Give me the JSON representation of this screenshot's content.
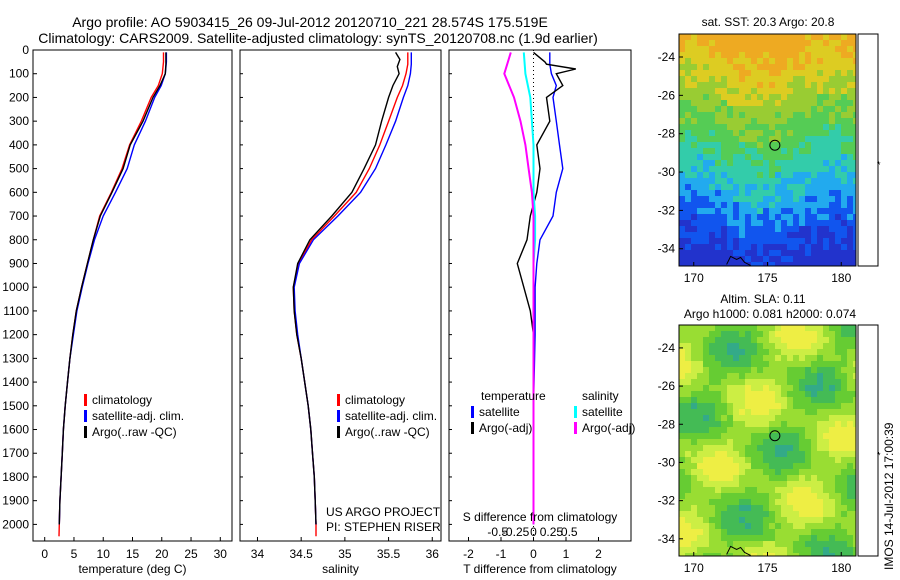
{
  "header": {
    "line1": "Argo profile: AO 5903415_26 09-Jul-2012 20120710_221 28.574S 175.519E",
    "line2": "Climatology: CARS2009. Satellite-adjusted climatology: synTS_20120708.nc (1.9d earlier)"
  },
  "chart_data": [
    {
      "type": "line",
      "id": "temperature",
      "xlabel": "temperature (deg C)",
      "ylabel": "",
      "xlim": [
        -2,
        32
      ],
      "ylim": [
        2070,
        0
      ],
      "xticks": [
        0,
        5,
        10,
        15,
        20,
        25,
        30
      ],
      "yticks": [
        0,
        100,
        200,
        300,
        400,
        500,
        600,
        700,
        800,
        900,
        1000,
        1100,
        1200,
        1300,
        1400,
        1500,
        1600,
        1700,
        1800,
        1900,
        2000
      ],
      "legend": [
        "climatology",
        "satellite-adj. clim.",
        "Argo(..raw -QC)"
      ],
      "legend_position": "bottom-right",
      "series": [
        {
          "name": "climatology",
          "color": "#ff0000",
          "points": [
            [
              20.3,
              10
            ],
            [
              20.3,
              50
            ],
            [
              20.1,
              100
            ],
            [
              19.4,
              150
            ],
            [
              18.2,
              200
            ],
            [
              16.5,
              300
            ],
            [
              14.5,
              400
            ],
            [
              13.2,
              500
            ],
            [
              11.4,
              600
            ],
            [
              9.4,
              700
            ],
            [
              8.3,
              800
            ],
            [
              7.3,
              900
            ],
            [
              6.3,
              1000
            ],
            [
              5.4,
              1100
            ],
            [
              4.8,
              1200
            ],
            [
              4.3,
              1300
            ],
            [
              3.9,
              1400
            ],
            [
              3.5,
              1500
            ],
            [
              3.2,
              1600
            ],
            [
              3.0,
              1700
            ],
            [
              2.8,
              1800
            ],
            [
              2.6,
              1900
            ],
            [
              2.5,
              2000
            ],
            [
              2.45,
              2050
            ]
          ]
        },
        {
          "name": "satellite-adj. clim.",
          "color": "#0000ff",
          "points": [
            [
              20.8,
              10
            ],
            [
              20.8,
              50
            ],
            [
              20.6,
              100
            ],
            [
              19.9,
              150
            ],
            [
              18.8,
              200
            ],
            [
              17.2,
              300
            ],
            [
              15.3,
              400
            ],
            [
              14.1,
              500
            ],
            [
              12.1,
              600
            ],
            [
              10.0,
              700
            ],
            [
              8.5,
              800
            ],
            [
              7.4,
              900
            ],
            [
              6.4,
              1000
            ],
            [
              5.5,
              1100
            ],
            [
              4.9,
              1200
            ],
            [
              4.3,
              1300
            ],
            [
              3.9,
              1400
            ],
            [
              3.5,
              1500
            ],
            [
              3.2,
              1600
            ],
            [
              3.0,
              1700
            ],
            [
              2.8,
              1800
            ],
            [
              2.6,
              1900
            ],
            [
              2.5,
              2000
            ]
          ]
        },
        {
          "name": "Argo(..raw -QC)",
          "color": "#000000",
          "points": [
            [
              20.7,
              10
            ],
            [
              20.7,
              60
            ],
            [
              20.6,
              100
            ],
            [
              19.7,
              150
            ],
            [
              18.5,
              200
            ],
            [
              16.8,
              300
            ],
            [
              14.6,
              400
            ],
            [
              13.4,
              500
            ],
            [
              11.5,
              600
            ],
            [
              9.5,
              700
            ],
            [
              8.3,
              800
            ],
            [
              7.3,
              900
            ],
            [
              6.3,
              1000
            ],
            [
              5.4,
              1100
            ],
            [
              4.8,
              1200
            ],
            [
              4.3,
              1300
            ],
            [
              3.9,
              1400
            ],
            [
              3.5,
              1500
            ],
            [
              3.2,
              1600
            ],
            [
              3.0,
              1700
            ],
            [
              2.8,
              1800
            ],
            [
              2.6,
              1900
            ],
            [
              2.5,
              2000
            ]
          ]
        }
      ]
    },
    {
      "type": "line",
      "id": "salinity",
      "xlabel": "salinity",
      "xlim": [
        33.8,
        36.1
      ],
      "ylim": [
        2070,
        0
      ],
      "xticks": [
        34,
        34.5,
        35,
        35.5,
        36
      ],
      "legend": [
        "climatology",
        "satellite-adj. clim.",
        "Argo(..raw -QC)"
      ],
      "legend_position": "bottom-right",
      "annotation": [
        "US ARGO PROJECT",
        "PI: STEPHEN RISER"
      ],
      "series": [
        {
          "name": "climatology",
          "color": "#ff0000",
          "points": [
            [
              35.72,
              10
            ],
            [
              35.72,
              60
            ],
            [
              35.7,
              100
            ],
            [
              35.66,
              150
            ],
            [
              35.6,
              200
            ],
            [
              35.5,
              300
            ],
            [
              35.4,
              400
            ],
            [
              35.28,
              500
            ],
            [
              35.13,
              600
            ],
            [
              34.88,
              700
            ],
            [
              34.62,
              800
            ],
            [
              34.47,
              900
            ],
            [
              34.41,
              1000
            ],
            [
              34.42,
              1100
            ],
            [
              34.45,
              1200
            ],
            [
              34.5,
              1300
            ],
            [
              34.54,
              1400
            ],
            [
              34.58,
              1500
            ],
            [
              34.61,
              1600
            ],
            [
              34.63,
              1700
            ],
            [
              34.65,
              1800
            ],
            [
              34.66,
              1900
            ],
            [
              34.67,
              2000
            ],
            [
              34.67,
              2050
            ]
          ]
        },
        {
          "name": "satellite-adj. clim.",
          "color": "#0000ff",
          "points": [
            [
              35.76,
              10
            ],
            [
              35.76,
              60
            ],
            [
              35.75,
              100
            ],
            [
              35.72,
              150
            ],
            [
              35.67,
              200
            ],
            [
              35.58,
              300
            ],
            [
              35.47,
              400
            ],
            [
              35.35,
              500
            ],
            [
              35.18,
              600
            ],
            [
              34.92,
              700
            ],
            [
              34.64,
              800
            ],
            [
              34.48,
              900
            ],
            [
              34.42,
              1000
            ],
            [
              34.43,
              1100
            ],
            [
              34.46,
              1200
            ],
            [
              34.5,
              1300
            ],
            [
              34.54,
              1400
            ],
            [
              34.58,
              1500
            ],
            [
              34.61,
              1600
            ],
            [
              34.63,
              1700
            ],
            [
              34.65,
              1800
            ],
            [
              34.66,
              1900
            ],
            [
              34.67,
              2000
            ]
          ]
        },
        {
          "name": "Argo(..raw -QC)",
          "color": "#000000",
          "points": [
            [
              35.58,
              10
            ],
            [
              35.63,
              40
            ],
            [
              35.6,
              70
            ],
            [
              35.62,
              100
            ],
            [
              35.55,
              150
            ],
            [
              35.5,
              200
            ],
            [
              35.42,
              300
            ],
            [
              35.35,
              400
            ],
            [
              35.22,
              500
            ],
            [
              35.08,
              600
            ],
            [
              34.85,
              700
            ],
            [
              34.6,
              800
            ],
            [
              34.46,
              900
            ],
            [
              34.41,
              1000
            ],
            [
              34.42,
              1100
            ],
            [
              34.45,
              1200
            ],
            [
              34.5,
              1300
            ],
            [
              34.54,
              1400
            ],
            [
              34.58,
              1500
            ],
            [
              34.61,
              1600
            ],
            [
              34.63,
              1700
            ],
            [
              34.65,
              1800
            ],
            [
              34.66,
              1900
            ],
            [
              34.67,
              2000
            ]
          ]
        }
      ]
    },
    {
      "type": "line",
      "id": "difference",
      "xlabel": "T difference from climatology",
      "xlabel_top": "S difference from climatology",
      "xlim": [
        -2.6,
        3.0
      ],
      "ylim": [
        2070,
        0
      ],
      "xticks_T": [
        -2,
        -1,
        0,
        1,
        2
      ],
      "xticks_S": [
        -0.5,
        -0.25,
        0,
        0.25,
        0.5
      ],
      "legend_headers": [
        "temperature",
        "salinity"
      ],
      "legend": [
        "satellite",
        "Argo(-adj)",
        "satellite",
        "Argo(-adj)"
      ],
      "legend_position": "bottom-right",
      "series": [
        {
          "name": "satellite",
          "color": "#0000ff",
          "points": [
            [
              0.5,
              10
            ],
            [
              0.5,
              60
            ],
            [
              0.55,
              100
            ],
            [
              0.7,
              150
            ],
            [
              0.6,
              200
            ],
            [
              0.7,
              300
            ],
            [
              0.8,
              400
            ],
            [
              0.9,
              500
            ],
            [
              0.7,
              600
            ],
            [
              0.6,
              700
            ],
            [
              0.2,
              800
            ],
            [
              0.1,
              900
            ],
            [
              0.05,
              1000
            ],
            [
              0.05,
              1200
            ],
            [
              0.0,
              1500
            ],
            [
              0.0,
              2000
            ]
          ]
        },
        {
          "name": "Argo(-adj)",
          "color": "#000000",
          "points": [
            [
              0.0,
              10
            ],
            [
              0.35,
              50
            ],
            [
              0.4,
              60
            ],
            [
              1.3,
              80
            ],
            [
              0.7,
              100
            ],
            [
              0.9,
              150
            ],
            [
              0.4,
              200
            ],
            [
              0.5,
              300
            ],
            [
              0.1,
              400
            ],
            [
              0.2,
              500
            ],
            [
              0.1,
              600
            ],
            [
              -0.1,
              700
            ],
            [
              -0.2,
              800
            ],
            [
              -0.5,
              900
            ],
            [
              -0.3,
              1000
            ],
            [
              -0.1,
              1100
            ],
            [
              0.0,
              1200
            ],
            [
              0.0,
              1300
            ],
            [
              0.0,
              2000
            ]
          ]
        },
        {
          "name": "satellite",
          "color": "#00ffff",
          "points": [
            [
              -0.3,
              10
            ],
            [
              -0.25,
              100
            ],
            [
              -0.1,
              200
            ],
            [
              0.0,
              400
            ],
            [
              0.0,
              600
            ],
            [
              0.05,
              700
            ],
            [
              0.05,
              800
            ],
            [
              0.0,
              900
            ],
            [
              0.0,
              1200
            ],
            [
              0.0,
              2000
            ]
          ]
        },
        {
          "name": "Argo(-adj)",
          "color": "#ff00ff",
          "points": [
            [
              -0.7,
              10
            ],
            [
              -0.9,
              100
            ],
            [
              -0.6,
              200
            ],
            [
              -0.4,
              300
            ],
            [
              -0.25,
              400
            ],
            [
              -0.15,
              500
            ],
            [
              -0.05,
              600
            ],
            [
              0.0,
              700
            ],
            [
              0.0,
              900
            ],
            [
              0.0,
              2000
            ]
          ]
        }
      ]
    },
    {
      "type": "heatmap",
      "id": "sst_map",
      "title": "sat. SST: 20.3  Argo: 20.8",
      "xlim": [
        169,
        181
      ],
      "ylim": [
        -34.9,
        -22.8
      ],
      "xticks": [
        170,
        175,
        180
      ],
      "yticks": [
        -24,
        -26,
        -28,
        -30,
        -32,
        -34
      ],
      "marker": {
        "lon": 175.5,
        "lat": -28.6
      },
      "palette": [
        "#2233cc",
        "#1155ee",
        "#22aaee",
        "#33ccaa",
        "#55cc55",
        "#99cc33",
        "#ddcc22",
        "#eeaa22"
      ]
    },
    {
      "type": "heatmap",
      "id": "sla_map",
      "title": "Altim. SLA: 0.11",
      "subtitle": "Argo h1000: 0.081 h2000: 0.074",
      "xlim": [
        169,
        181
      ],
      "ylim": [
        -34.9,
        -22.8
      ],
      "xticks": [
        170,
        175,
        180
      ],
      "yticks": [
        -24,
        -26,
        -28,
        -30,
        -32,
        -34
      ],
      "marker": {
        "lon": 175.5,
        "lat": -28.6
      },
      "palette": [
        "#33aa88",
        "#44bb55",
        "#66cc33",
        "#99dd33",
        "#ccee44",
        "#eeee44"
      ]
    }
  ],
  "footer": {
    "stamp": "IMOS 14-Jul-2012 17:00:39"
  }
}
